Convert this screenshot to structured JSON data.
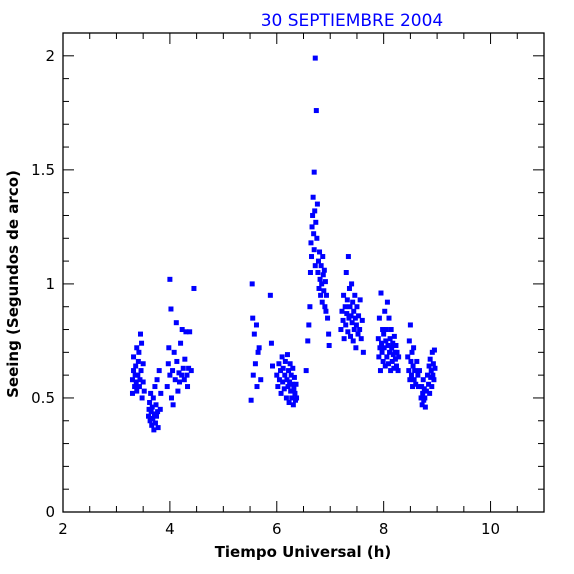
{
  "chart_data": {
    "type": "scatter",
    "title": "30 SEPTIEMBRE 2004",
    "xlabel": "Tiempo Universal (h)",
    "ylabel": "Seeing (Segundos de arco)",
    "xlim": [
      2,
      11
    ],
    "ylim": [
      0,
      2.1
    ],
    "x_ticks": [
      2,
      4,
      6,
      8,
      10
    ],
    "y_ticks": [
      0,
      0.5,
      1,
      1.5,
      2
    ],
    "x_tick_labels": [
      "2",
      "4",
      "6",
      "8",
      "10"
    ],
    "y_tick_labels": [
      "0",
      "0.5",
      "1",
      "1.5",
      "2"
    ],
    "grid": false,
    "legend": "none",
    "series": [
      {
        "marker": "square",
        "color": "#0000ff",
        "points": [
          [
            3.3,
            0.52
          ],
          [
            3.3,
            0.58
          ],
          [
            3.32,
            0.62
          ],
          [
            3.32,
            0.68
          ],
          [
            3.34,
            0.55
          ],
          [
            3.35,
            0.6
          ],
          [
            3.36,
            0.64
          ],
          [
            3.37,
            0.57
          ],
          [
            3.38,
            0.72
          ],
          [
            3.38,
            0.53
          ],
          [
            3.4,
            0.6
          ],
          [
            3.41,
            0.66
          ],
          [
            3.42,
            0.7
          ],
          [
            3.43,
            0.55
          ],
          [
            3.44,
            0.58
          ],
          [
            3.45,
            0.78
          ],
          [
            3.46,
            0.62
          ],
          [
            3.47,
            0.74
          ],
          [
            3.48,
            0.5
          ],
          [
            3.5,
            0.57
          ],
          [
            3.5,
            0.65
          ],
          [
            3.52,
            0.53
          ],
          [
            3.6,
            0.42
          ],
          [
            3.61,
            0.45
          ],
          [
            3.62,
            0.48
          ],
          [
            3.63,
            0.4
          ],
          [
            3.64,
            0.52
          ],
          [
            3.65,
            0.44
          ],
          [
            3.66,
            0.38
          ],
          [
            3.67,
            0.46
          ],
          [
            3.68,
            0.41
          ],
          [
            3.69,
            0.5
          ],
          [
            3.7,
            0.36
          ],
          [
            3.71,
            0.43
          ],
          [
            3.72,
            0.55
          ],
          [
            3.73,
            0.39
          ],
          [
            3.74,
            0.47
          ],
          [
            3.75,
            0.42
          ],
          [
            3.76,
            0.58
          ],
          [
            3.77,
            0.44
          ],
          [
            3.78,
            0.37
          ],
          [
            3.8,
            0.62
          ],
          [
            3.82,
            0.45
          ],
          [
            3.83,
            0.52
          ],
          [
            3.95,
            0.55
          ],
          [
            3.97,
            0.65
          ],
          [
            3.98,
            0.72
          ],
          [
            4.0,
            0.6
          ],
          [
            4.0,
            1.02
          ],
          [
            4.02,
            0.89
          ],
          [
            4.03,
            0.5
          ],
          [
            4.05,
            0.62
          ],
          [
            4.06,
            0.47
          ],
          [
            4.08,
            0.7
          ],
          [
            4.1,
            0.58
          ],
          [
            4.12,
            0.83
          ],
          [
            4.13,
            0.66
          ],
          [
            4.15,
            0.53
          ],
          [
            4.17,
            0.61
          ],
          [
            4.18,
            0.57
          ],
          [
            4.2,
            0.74
          ],
          [
            4.22,
            0.6
          ],
          [
            4.23,
            0.8
          ],
          [
            4.25,
            0.63
          ],
          [
            4.27,
            0.58
          ],
          [
            4.28,
            0.67
          ],
          [
            4.3,
            0.79
          ],
          [
            4.32,
            0.6
          ],
          [
            4.33,
            0.55
          ],
          [
            4.35,
            0.63
          ],
          [
            4.37,
            0.79
          ],
          [
            4.4,
            0.62
          ],
          [
            4.45,
            0.98
          ],
          [
            5.52,
            0.49
          ],
          [
            5.54,
            1.0
          ],
          [
            5.55,
            0.85
          ],
          [
            5.56,
            0.6
          ],
          [
            5.58,
            0.78
          ],
          [
            5.6,
            0.65
          ],
          [
            5.62,
            0.82
          ],
          [
            5.63,
            0.55
          ],
          [
            5.65,
            0.7
          ],
          [
            5.67,
            0.72
          ],
          [
            5.7,
            0.58
          ],
          [
            5.88,
            0.95
          ],
          [
            5.9,
            0.74
          ],
          [
            5.92,
            0.64
          ],
          [
            6.0,
            0.6
          ],
          [
            6.02,
            0.55
          ],
          [
            6.04,
            0.65
          ],
          [
            6.05,
            0.58
          ],
          [
            6.07,
            0.62
          ],
          [
            6.08,
            0.52
          ],
          [
            6.1,
            0.68
          ],
          [
            6.11,
            0.57
          ],
          [
            6.12,
            0.63
          ],
          [
            6.14,
            0.54
          ],
          [
            6.15,
            0.6
          ],
          [
            6.16,
            0.66
          ],
          [
            6.18,
            0.5
          ],
          [
            6.19,
            0.58
          ],
          [
            6.2,
            0.69
          ],
          [
            6.21,
            0.55
          ],
          [
            6.22,
            0.62
          ],
          [
            6.23,
            0.48
          ],
          [
            6.24,
            0.57
          ],
          [
            6.25,
            0.65
          ],
          [
            6.26,
            0.53
          ],
          [
            6.27,
            0.6
          ],
          [
            6.28,
            0.5
          ],
          [
            6.29,
            0.56
          ],
          [
            6.3,
            0.63
          ],
          [
            6.31,
            0.47
          ],
          [
            6.32,
            0.54
          ],
          [
            6.33,
            0.59
          ],
          [
            6.34,
            0.52
          ],
          [
            6.35,
            0.49
          ],
          [
            6.36,
            0.56
          ],
          [
            6.37,
            0.5
          ],
          [
            6.55,
            0.62
          ],
          [
            6.58,
            0.75
          ],
          [
            6.6,
            0.82
          ],
          [
            6.62,
            0.9
          ],
          [
            6.63,
            1.05
          ],
          [
            6.64,
            1.18
          ],
          [
            6.65,
            1.12
          ],
          [
            6.66,
            1.25
          ],
          [
            6.67,
            1.3
          ],
          [
            6.68,
            1.38
          ],
          [
            6.69,
            1.22
          ],
          [
            6.7,
            1.15
          ],
          [
            6.7,
            1.49
          ],
          [
            6.71,
            1.32
          ],
          [
            6.72,
            1.08
          ],
          [
            6.72,
            1.99
          ],
          [
            6.73,
            1.27
          ],
          [
            6.74,
            1.76
          ],
          [
            6.75,
            1.2
          ],
          [
            6.76,
            1.35
          ],
          [
            6.77,
            1.05
          ],
          [
            6.78,
            1.1
          ],
          [
            6.79,
            0.98
          ],
          [
            6.8,
            1.14
          ],
          [
            6.81,
            1.02
          ],
          [
            6.82,
            0.95
          ],
          [
            6.83,
            1.08
          ],
          [
            6.84,
            1.0
          ],
          [
            6.85,
            0.92
          ],
          [
            6.86,
            1.12
          ],
          [
            6.87,
            1.04
          ],
          [
            6.88,
            0.97
          ],
          [
            6.89,
            1.06
          ],
          [
            6.9,
            0.9
          ],
          [
            6.91,
            1.01
          ],
          [
            6.92,
            0.88
          ],
          [
            6.93,
            0.95
          ],
          [
            6.95,
            0.85
          ],
          [
            6.97,
            0.78
          ],
          [
            6.98,
            0.73
          ],
          [
            7.2,
            0.8
          ],
          [
            7.22,
            0.88
          ],
          [
            7.24,
            0.84
          ],
          [
            7.25,
            0.95
          ],
          [
            7.26,
            0.76
          ],
          [
            7.28,
            0.9
          ],
          [
            7.29,
            0.82
          ],
          [
            7.3,
            1.05
          ],
          [
            7.31,
            0.87
          ],
          [
            7.32,
            0.93
          ],
          [
            7.33,
            0.79
          ],
          [
            7.34,
            1.12
          ],
          [
            7.35,
            0.85
          ],
          [
            7.36,
            0.98
          ],
          [
            7.37,
            0.9
          ],
          [
            7.38,
            0.77
          ],
          [
            7.39,
            0.86
          ],
          [
            7.4,
            1.0
          ],
          [
            7.41,
            0.83
          ],
          [
            7.42,
            0.92
          ],
          [
            7.43,
            0.75
          ],
          [
            7.44,
            0.88
          ],
          [
            7.45,
            0.8
          ],
          [
            7.46,
            0.95
          ],
          [
            7.47,
            0.85
          ],
          [
            7.48,
            0.72
          ],
          [
            7.49,
            0.82
          ],
          [
            7.5,
            0.9
          ],
          [
            7.52,
            0.78
          ],
          [
            7.53,
            0.86
          ],
          [
            7.55,
            0.8
          ],
          [
            7.56,
            0.93
          ],
          [
            7.58,
            0.76
          ],
          [
            7.6,
            0.84
          ],
          [
            7.62,
            0.7
          ],
          [
            7.9,
            0.76
          ],
          [
            7.91,
            0.68
          ],
          [
            7.92,
            0.85
          ],
          [
            7.93,
            0.72
          ],
          [
            7.94,
            0.62
          ],
          [
            7.95,
            0.96
          ],
          [
            7.96,
            0.74
          ],
          [
            7.97,
            0.7
          ],
          [
            7.98,
            0.8
          ],
          [
            7.99,
            0.66
          ],
          [
            8.0,
            0.78
          ],
          [
            8.01,
            0.72
          ],
          [
            8.02,
            0.88
          ],
          [
            8.03,
            0.64
          ],
          [
            8.04,
            0.75
          ],
          [
            8.05,
            0.8
          ],
          [
            8.06,
            0.68
          ],
          [
            8.07,
            0.92
          ],
          [
            8.08,
            0.73
          ],
          [
            8.09,
            0.65
          ],
          [
            8.1,
            0.85
          ],
          [
            8.11,
            0.7
          ],
          [
            8.12,
            0.76
          ],
          [
            8.13,
            0.62
          ],
          [
            8.14,
            0.8
          ],
          [
            8.15,
            0.72
          ],
          [
            8.16,
            0.66
          ],
          [
            8.17,
            0.74
          ],
          [
            8.18,
            0.69
          ],
          [
            8.19,
            0.63
          ],
          [
            8.2,
            0.77
          ],
          [
            8.21,
            0.7
          ],
          [
            8.22,
            0.67
          ],
          [
            8.23,
            0.73
          ],
          [
            8.24,
            0.64
          ],
          [
            8.25,
            0.7
          ],
          [
            8.27,
            0.62
          ],
          [
            8.28,
            0.68
          ],
          [
            8.45,
            0.68
          ],
          [
            8.47,
            0.62
          ],
          [
            8.48,
            0.75
          ],
          [
            8.49,
            0.58
          ],
          [
            8.5,
            0.82
          ],
          [
            8.51,
            0.66
          ],
          [
            8.52,
            0.6
          ],
          [
            8.53,
            0.7
          ],
          [
            8.54,
            0.55
          ],
          [
            8.55,
            0.64
          ],
          [
            8.56,
            0.72
          ],
          [
            8.57,
            0.58
          ],
          [
            8.58,
            0.62
          ],
          [
            8.6,
            0.56
          ],
          [
            8.62,
            0.66
          ],
          [
            8.64,
            0.6
          ],
          [
            8.65,
            0.55
          ],
          [
            8.67,
            0.62
          ],
          [
            8.7,
            0.5
          ],
          [
            8.71,
            0.55
          ],
          [
            8.72,
            0.47
          ],
          [
            8.73,
            0.52
          ],
          [
            8.74,
            0.58
          ],
          [
            8.75,
            0.49
          ],
          [
            8.76,
            0.54
          ],
          [
            8.77,
            0.5
          ],
          [
            8.78,
            0.46
          ],
          [
            8.8,
            0.53
          ],
          [
            8.82,
            0.6
          ],
          [
            8.84,
            0.56
          ],
          [
            8.85,
            0.64
          ],
          [
            8.86,
            0.52
          ],
          [
            8.87,
            0.67
          ],
          [
            8.88,
            0.59
          ],
          [
            8.89,
            0.62
          ],
          [
            8.9,
            0.55
          ],
          [
            8.91,
            0.7
          ],
          [
            8.92,
            0.6
          ],
          [
            8.93,
            0.65
          ],
          [
            8.94,
            0.58
          ],
          [
            8.95,
            0.71
          ],
          [
            8.96,
            0.63
          ]
        ]
      }
    ]
  }
}
